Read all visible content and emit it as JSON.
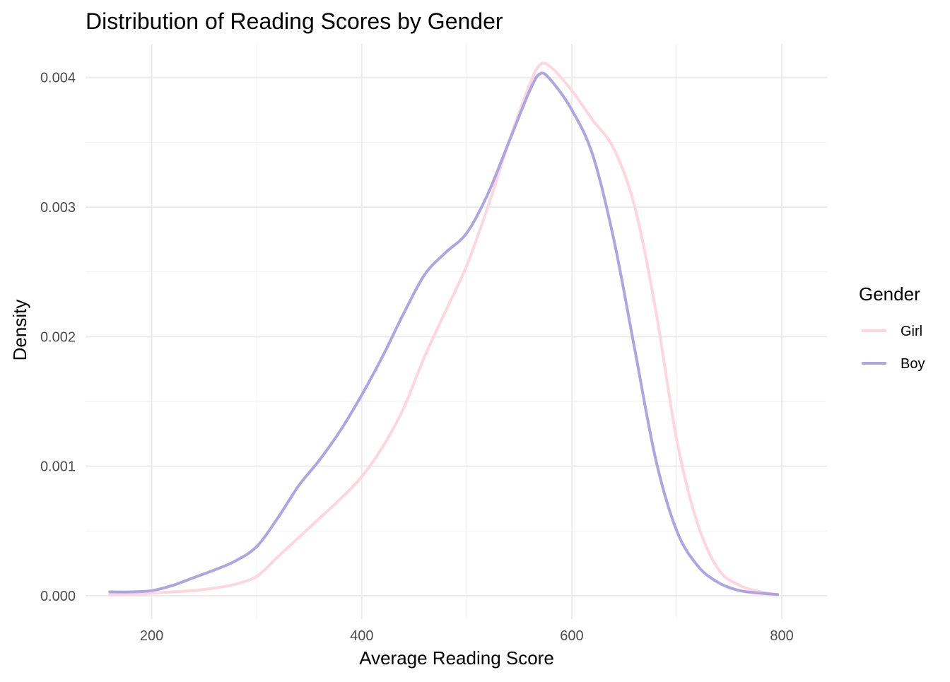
{
  "chart_data": {
    "type": "line",
    "title": "Distribution of Reading Scores by Gender",
    "xlabel": "Average Reading Score",
    "ylabel": "Density",
    "xlim": [
      137,
      843
    ],
    "ylim": [
      -0.00018,
      0.00426
    ],
    "x_ticks": [
      200,
      400,
      600,
      800
    ],
    "x_tick_labels": [
      "200",
      "400",
      "600",
      "800"
    ],
    "x_minor_ticks": [
      300,
      500,
      700
    ],
    "y_ticks": [
      0,
      0.001,
      0.002,
      0.003,
      0.004
    ],
    "y_tick_labels": [
      "0.000",
      "0.001",
      "0.002",
      "0.003",
      "0.004"
    ],
    "y_minor_ticks": [
      0.0005,
      0.0015,
      0.0025,
      0.0035
    ],
    "grid": true,
    "legend": {
      "title": "Gender",
      "position": "right"
    },
    "series": [
      {
        "name": "Girl",
        "color": "#ffd6e0",
        "points": [
          [
            160,
            1e-05
          ],
          [
            180,
            1e-05
          ],
          [
            200,
            2e-05
          ],
          [
            220,
            3e-05
          ],
          [
            240,
            4e-05
          ],
          [
            260,
            6e-05
          ],
          [
            280,
            9e-05
          ],
          [
            300,
            0.00015
          ],
          [
            320,
            0.0003
          ],
          [
            340,
            0.00045
          ],
          [
            360,
            0.0006
          ],
          [
            380,
            0.00075
          ],
          [
            400,
            0.00092
          ],
          [
            420,
            0.00115
          ],
          [
            440,
            0.00145
          ],
          [
            460,
            0.00185
          ],
          [
            480,
            0.0022
          ],
          [
            500,
            0.00255
          ],
          [
            520,
            0.003
          ],
          [
            540,
            0.0035
          ],
          [
            560,
            0.00395
          ],
          [
            570,
            0.0041
          ],
          [
            580,
            0.00408
          ],
          [
            600,
            0.0039
          ],
          [
            620,
            0.00367
          ],
          [
            640,
            0.00345
          ],
          [
            660,
            0.003
          ],
          [
            680,
            0.0022
          ],
          [
            700,
            0.0012
          ],
          [
            720,
            0.00055
          ],
          [
            740,
            0.0002
          ],
          [
            760,
            8e-05
          ],
          [
            780,
            3e-05
          ],
          [
            796,
            1e-05
          ]
        ]
      },
      {
        "name": "Boy",
        "color": "#aea6e2",
        "points": [
          [
            160,
            3e-05
          ],
          [
            180,
            3e-05
          ],
          [
            200,
            4e-05
          ],
          [
            220,
            8e-05
          ],
          [
            240,
            0.00014
          ],
          [
            260,
            0.0002
          ],
          [
            280,
            0.00027
          ],
          [
            300,
            0.00038
          ],
          [
            320,
            0.0006
          ],
          [
            340,
            0.00085
          ],
          [
            360,
            0.00105
          ],
          [
            380,
            0.00128
          ],
          [
            400,
            0.00155
          ],
          [
            420,
            0.00185
          ],
          [
            440,
            0.00218
          ],
          [
            460,
            0.00248
          ],
          [
            480,
            0.00265
          ],
          [
            500,
            0.0028
          ],
          [
            520,
            0.0031
          ],
          [
            540,
            0.0035
          ],
          [
            560,
            0.0039
          ],
          [
            570,
            0.00403
          ],
          [
            580,
            0.00398
          ],
          [
            600,
            0.00375
          ],
          [
            620,
            0.0034
          ],
          [
            640,
            0.00275
          ],
          [
            660,
            0.0019
          ],
          [
            680,
            0.00105
          ],
          [
            700,
            0.0005
          ],
          [
            720,
            0.00023
          ],
          [
            740,
            0.0001
          ],
          [
            760,
            4e-05
          ],
          [
            780,
            2e-05
          ],
          [
            796,
            1e-05
          ]
        ]
      }
    ]
  }
}
